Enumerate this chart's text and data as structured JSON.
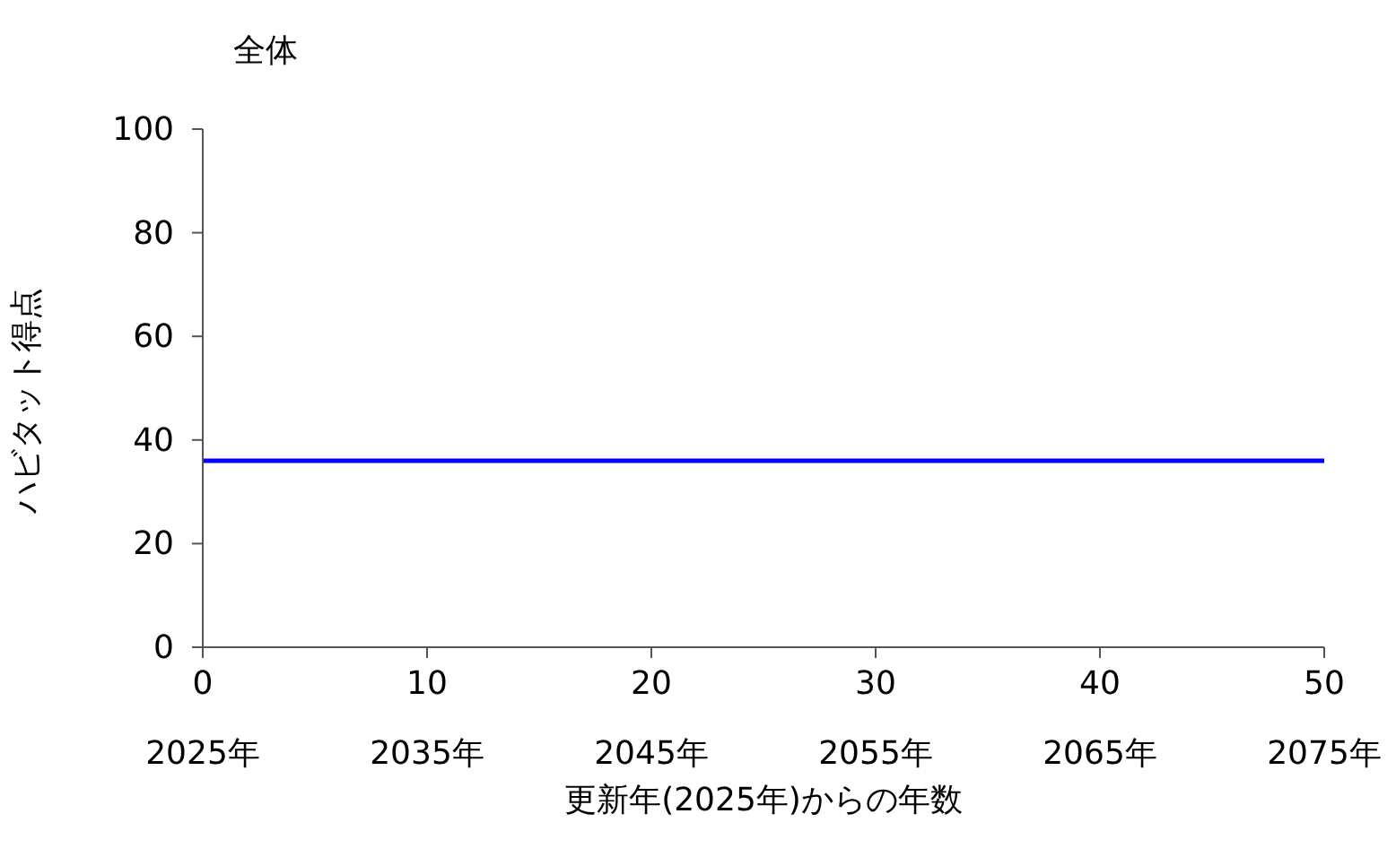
{
  "chart_data": {
    "type": "line",
    "title": "全体",
    "xlabel": "更新年(2025年)からの年数",
    "ylabel": "ハビタット得点",
    "x": [
      0,
      50
    ],
    "series": [
      {
        "color": "#0000ff",
        "values": [
          36,
          36
        ]
      }
    ],
    "xlim": [
      0,
      50
    ],
    "xticks": [
      0,
      10,
      20,
      30,
      40,
      50
    ],
    "x2lim": [
      2025,
      2075
    ],
    "x2ticks": [
      {
        "value": 2025,
        "label": "2025年"
      },
      {
        "value": 2035,
        "label": "2035年"
      },
      {
        "value": 2045,
        "label": "2045年"
      },
      {
        "value": 2055,
        "label": "2055年"
      },
      {
        "value": 2065,
        "label": "2065年"
      },
      {
        "value": 2075,
        "label": "2075年"
      }
    ],
    "ylim": [
      0,
      100
    ],
    "yticks": [
      0,
      20,
      40,
      60,
      80,
      100
    ],
    "grid": false,
    "legend": false,
    "marker": "none",
    "line_style": "solid"
  }
}
